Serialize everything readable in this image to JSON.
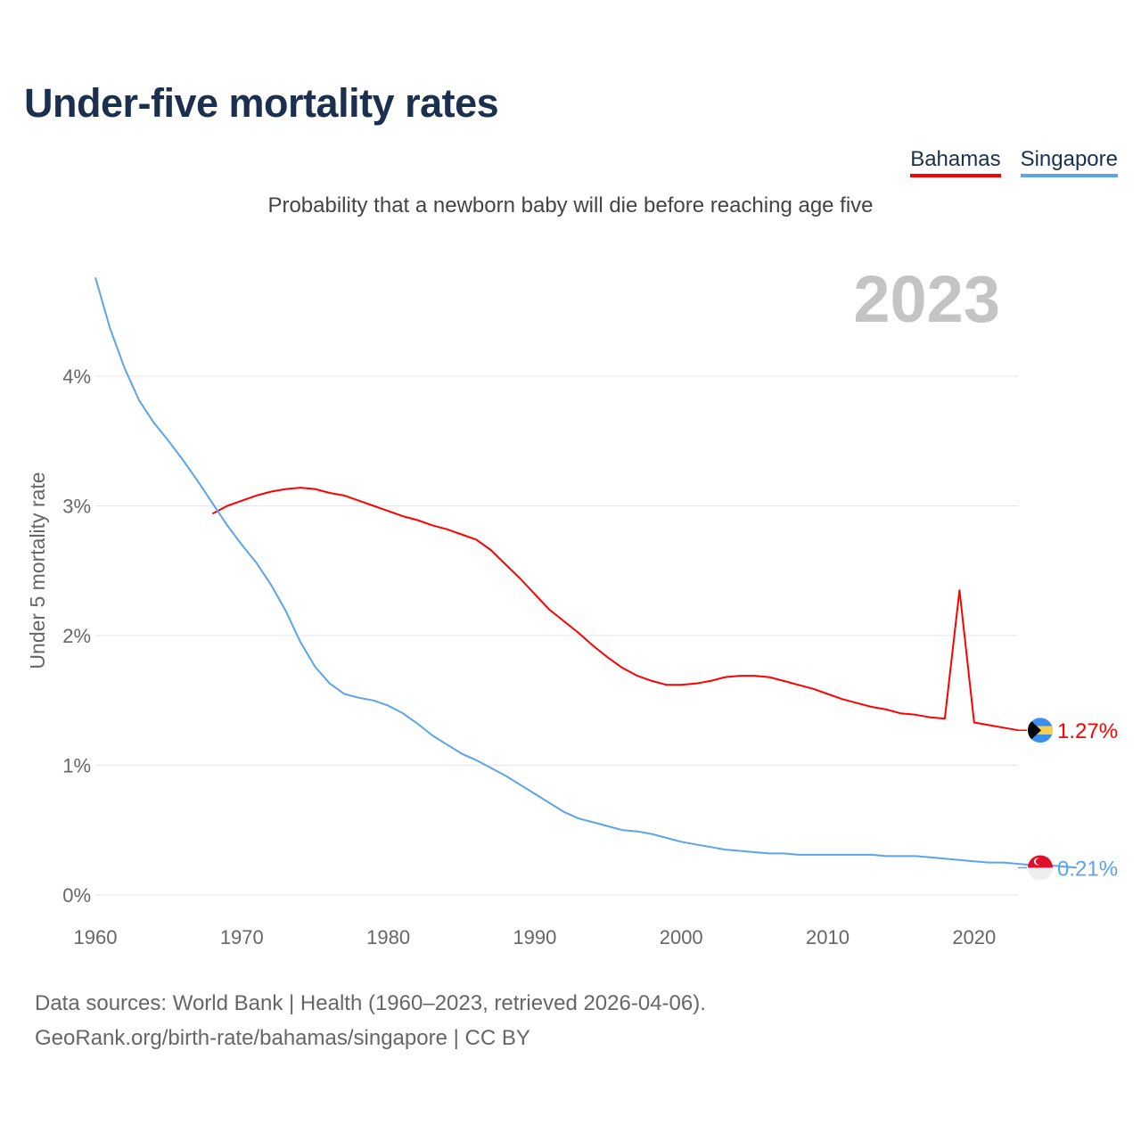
{
  "chart_data": {
    "type": "line",
    "title": "Under-five mortality rates",
    "subtitle": "Probability that a newborn baby will die before reaching age five",
    "ylabel": "Under 5 mortality rate",
    "xlabel": "",
    "ylim": [
      0,
      4.8
    ],
    "xlim": [
      1960,
      2023
    ],
    "yticks": [
      0,
      1,
      2,
      3,
      4
    ],
    "ytick_labels": [
      "0%",
      "1%",
      "2%",
      "3%",
      "4%"
    ],
    "xticks": [
      1960,
      1970,
      1980,
      1990,
      2000,
      2010,
      2020
    ],
    "xtick_labels": [
      "1960",
      "1970",
      "1980",
      "1990",
      "2000",
      "2010",
      "2020"
    ],
    "grid": true,
    "legend_position": "top-right",
    "year_label": "2023",
    "series": [
      {
        "name": "Bahamas",
        "color": "#ff0000",
        "end_label": "1.27%",
        "start_year": 1968,
        "values": [
          2.94,
          3.0,
          3.04,
          3.08,
          3.11,
          3.13,
          3.14,
          3.13,
          3.1,
          3.08,
          3.04,
          3.0,
          2.96,
          2.92,
          2.89,
          2.85,
          2.82,
          2.78,
          2.74,
          2.66,
          2.55,
          2.44,
          2.32,
          2.2,
          2.11,
          2.02,
          1.92,
          1.83,
          1.75,
          1.69,
          1.65,
          1.62,
          1.62,
          1.63,
          1.65,
          1.68,
          1.69,
          1.69,
          1.68,
          1.65,
          1.62,
          1.59,
          1.55,
          1.51,
          1.48,
          1.45,
          1.43,
          1.4,
          1.39,
          1.37,
          1.36,
          2.35,
          1.33,
          1.31,
          1.29,
          1.27
        ]
      },
      {
        "name": "Singapore",
        "color": "#5ba4ea",
        "end_label": "0.21%",
        "start_year": 1960,
        "values": [
          4.76,
          4.37,
          4.06,
          3.81,
          3.64,
          3.5,
          3.35,
          3.19,
          3.02,
          2.85,
          2.7,
          2.56,
          2.39,
          2.19,
          1.95,
          1.76,
          1.63,
          1.55,
          1.52,
          1.5,
          1.46,
          1.4,
          1.32,
          1.23,
          1.16,
          1.09,
          1.04,
          0.98,
          0.92,
          0.85,
          0.78,
          0.71,
          0.64,
          0.59,
          0.56,
          0.53,
          0.5,
          0.49,
          0.47,
          0.44,
          0.41,
          0.39,
          0.37,
          0.35,
          0.34,
          0.33,
          0.32,
          0.32,
          0.31,
          0.31,
          0.31,
          0.31,
          0.31,
          0.31,
          0.3,
          0.3,
          0.3,
          0.29,
          0.28,
          0.27,
          0.26,
          0.25,
          0.25,
          0.24,
          0.23,
          0.23,
          0.22,
          0.21
        ]
      }
    ]
  },
  "footer": {
    "line1": "Data sources: World Bank | Health (1960–2023, retrieved 2026-04-06).",
    "line2": "GeoRank.org/birth-rate/bahamas/singapore | CC BY"
  },
  "icons": {
    "bahamas": "bahamas-flag-icon",
    "singapore": "singapore-flag-icon"
  }
}
